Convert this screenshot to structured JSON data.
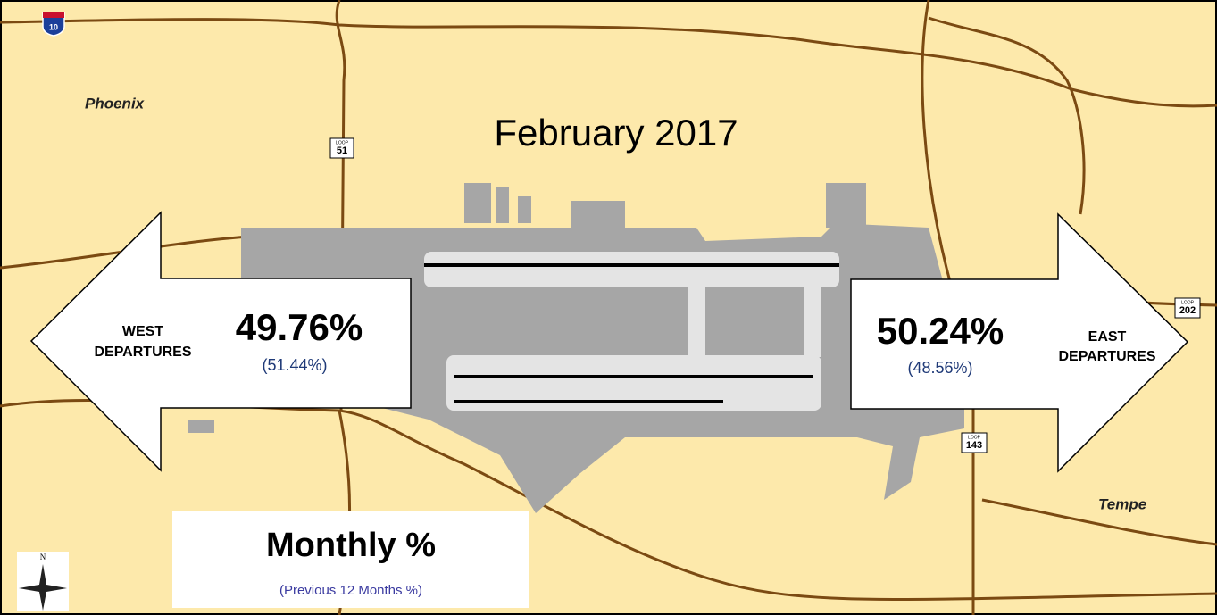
{
  "map": {
    "title": "February 2017",
    "places": [
      "Phoenix",
      "Tempe"
    ],
    "west": {
      "label": [
        "WEST",
        "DEPARTURES"
      ],
      "monthly": "49.76%",
      "previous": "(51.44%)"
    },
    "east": {
      "label": [
        "EAST",
        "DEPARTURES"
      ],
      "monthly": "50.24%",
      "previous": "(48.56%)"
    },
    "legend": {
      "title": "Monthly %",
      "subtitle": "(Previous 12 Months %)"
    },
    "shields": [
      {
        "top": null,
        "number": "10"
      },
      {
        "top": "LOOP",
        "number": "51"
      },
      {
        "top": "LOOP",
        "number": "202"
      },
      {
        "top": "LOOP",
        "number": "143"
      }
    ],
    "compass": "N"
  }
}
